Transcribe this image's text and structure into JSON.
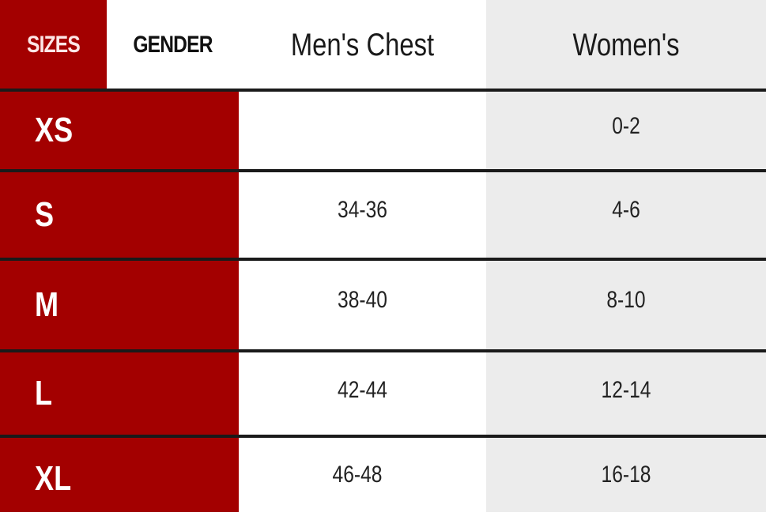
{
  "colors": {
    "accent_red": "#a30000",
    "women_column_bg": "#ececec",
    "row_divider": "#1a1a1a"
  },
  "headers": {
    "sizes": "SIZES",
    "gender": "GENDER",
    "mens": "Men's Chest",
    "womens": "Women's"
  },
  "rows": [
    {
      "size": "XS",
      "mens": "",
      "womens": "0-2"
    },
    {
      "size": "S",
      "mens": "34-36",
      "womens": "4-6"
    },
    {
      "size": "M",
      "mens": "38-40",
      "womens": "8-10"
    },
    {
      "size": "L",
      "mens": "42-44",
      "womens": "12-14"
    },
    {
      "size": "XL",
      "mens": "46-48",
      "womens": "16-18"
    }
  ]
}
